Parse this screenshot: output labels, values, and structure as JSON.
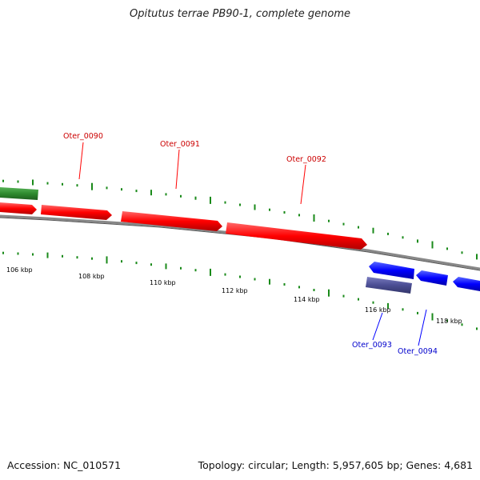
{
  "title": "Opitutus terrae PB90-1, complete genome",
  "footer": {
    "accession": "Accession: NC_010571",
    "summary": "Topology: circular; Length: 5,957,605 bp; Genes: 4,681"
  },
  "colors": {
    "forward": "#ff0000",
    "reverse": "#0000ff",
    "other_forward": "#2e8b2e",
    "other_reverse": "#4b4e93",
    "gc_ticks": "#1a8a1a",
    "backbone": "#888888"
  },
  "ticks": [
    {
      "label": "106 kbp"
    },
    {
      "label": "108 kbp"
    },
    {
      "label": "110 kbp"
    },
    {
      "label": "112 kbp"
    },
    {
      "label": "114 kbp"
    },
    {
      "label": "116 kbp"
    },
    {
      "label": "118 kbp"
    }
  ],
  "genes": [
    {
      "name": "Oter_0090",
      "strand": "forward"
    },
    {
      "name": "Oter_0091",
      "strand": "forward"
    },
    {
      "name": "Oter_0092",
      "strand": "forward"
    },
    {
      "name": "Oter_0093",
      "strand": "reverse"
    },
    {
      "name": "Oter_0094",
      "strand": "reverse"
    }
  ]
}
